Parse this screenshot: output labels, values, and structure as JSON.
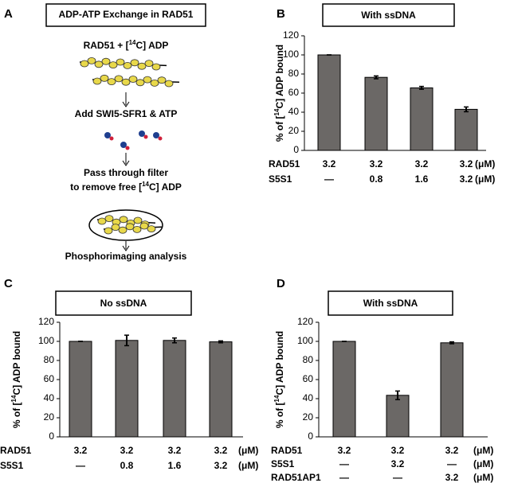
{
  "panel_a": {
    "letter": "A",
    "title": "ADP-ATP Exchange in RAD51",
    "steps": [
      {
        "pre": "RAD51 + [",
        "sup": "14",
        "post": "C] ADP"
      },
      {
        "text": "Add SWI5-SFR1 & ATP"
      },
      {
        "text": "Pass through filter"
      },
      {
        "pre": "to remove free [",
        "sup": "14",
        "post": "C] ADP"
      },
      {
        "text": "Phosphorimaging analysis"
      }
    ]
  },
  "chart_data": [
    {
      "type": "bar",
      "panel": "B",
      "title": "With ssDNA",
      "y_label": {
        "pre": "% of [",
        "sup": "14",
        "post": "C] ADP bound"
      },
      "categories": [
        null,
        null,
        null,
        null
      ],
      "values": [
        100,
        76.5,
        65.5,
        43
      ],
      "errors": [
        0,
        1.5,
        1.5,
        2.5
      ],
      "color": "#6b6866",
      "ylim": [
        0,
        120
      ],
      "yticks": [
        0,
        20,
        40,
        60,
        80,
        100,
        120
      ],
      "rows": [
        {
          "label": "RAD51",
          "values": [
            "3.2",
            "3.2",
            "3.2",
            "3.2"
          ],
          "unit": "(μM)"
        },
        {
          "label": "S5S1",
          "values": [
            "—",
            "0.8",
            "1.6",
            "3.2"
          ],
          "unit": "(μM)"
        }
      ]
    },
    {
      "type": "bar",
      "panel": "C",
      "title": "No ssDNA",
      "y_label": {
        "pre": "% of [",
        "sup": "14",
        "post": "C] ADP bound"
      },
      "categories": [
        null,
        null,
        null,
        null
      ],
      "values": [
        100,
        101,
        101,
        99.5
      ],
      "errors": [
        0,
        5.5,
        2.5,
        1
      ],
      "color": "#6b6866",
      "ylim": [
        0,
        120
      ],
      "yticks": [
        0,
        20,
        40,
        60,
        80,
        100,
        120
      ],
      "rows": [
        {
          "label": "RAD51",
          "values": [
            "3.2",
            "3.2",
            "3.2",
            "3.2"
          ],
          "unit": "(μM)"
        },
        {
          "label": "S5S1",
          "values": [
            "—",
            "0.8",
            "1.6",
            "3.2"
          ],
          "unit": "(μM)"
        }
      ]
    },
    {
      "type": "bar",
      "panel": "D",
      "title": "With ssDNA",
      "y_label": {
        "pre": "% of [",
        "sup": "14",
        "post": "C] ADP bound"
      },
      "categories": [
        null,
        null,
        null
      ],
      "values": [
        100,
        43.5,
        98.5
      ],
      "errors": [
        0,
        4.5,
        1
      ],
      "color": "#6b6866",
      "ylim": [
        0,
        120
      ],
      "yticks": [
        0,
        20,
        40,
        60,
        80,
        100,
        120
      ],
      "rows": [
        {
          "label": "RAD51",
          "values": [
            "3.2",
            "3.2",
            "3.2"
          ],
          "unit": "(μM)"
        },
        {
          "label": "S5S1",
          "values": [
            "—",
            "3.2",
            "—"
          ],
          "unit": "(μM)"
        },
        {
          "label": "RAD51AP1",
          "values": [
            "—",
            "—",
            "3.2"
          ],
          "unit": "(μM)"
        }
      ]
    }
  ]
}
